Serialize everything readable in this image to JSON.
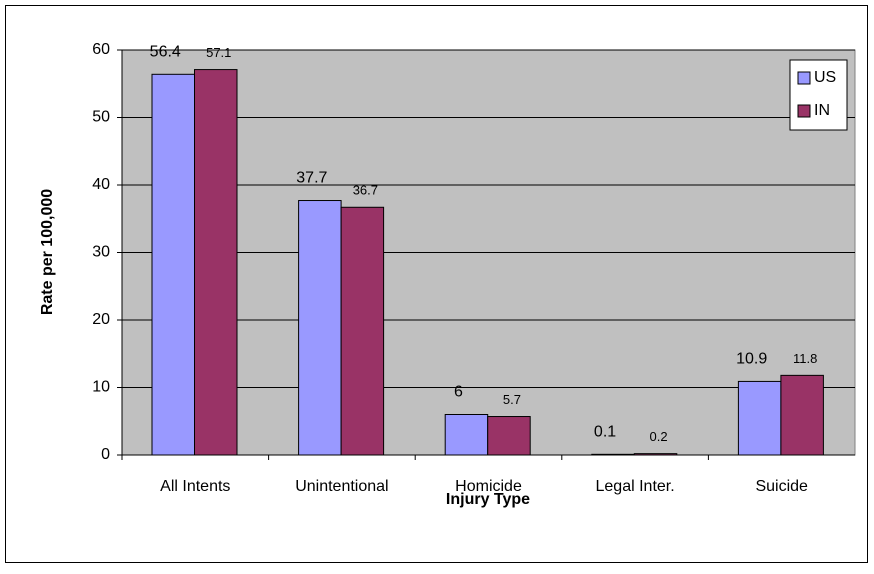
{
  "chart_data": {
    "type": "bar",
    "x_label": "Injury Type",
    "y_label": "Rate per 100,000",
    "categories": [
      "All Intents",
      "Unintentional",
      "Homicide",
      "Legal Inter.",
      "Suicide"
    ],
    "series": [
      {
        "name": "US",
        "color": "#9999ff",
        "values": [
          56.4,
          37.7,
          6,
          0.1,
          10.9
        ]
      },
      {
        "name": "IN",
        "color": "#993366",
        "values": [
          57.1,
          36.7,
          5.7,
          0.2,
          11.8
        ]
      }
    ],
    "ylim": [
      0,
      60
    ],
    "yticks": [
      0,
      10,
      20,
      30,
      40,
      50,
      60
    ],
    "grid": true,
    "legend": "top-right"
  }
}
